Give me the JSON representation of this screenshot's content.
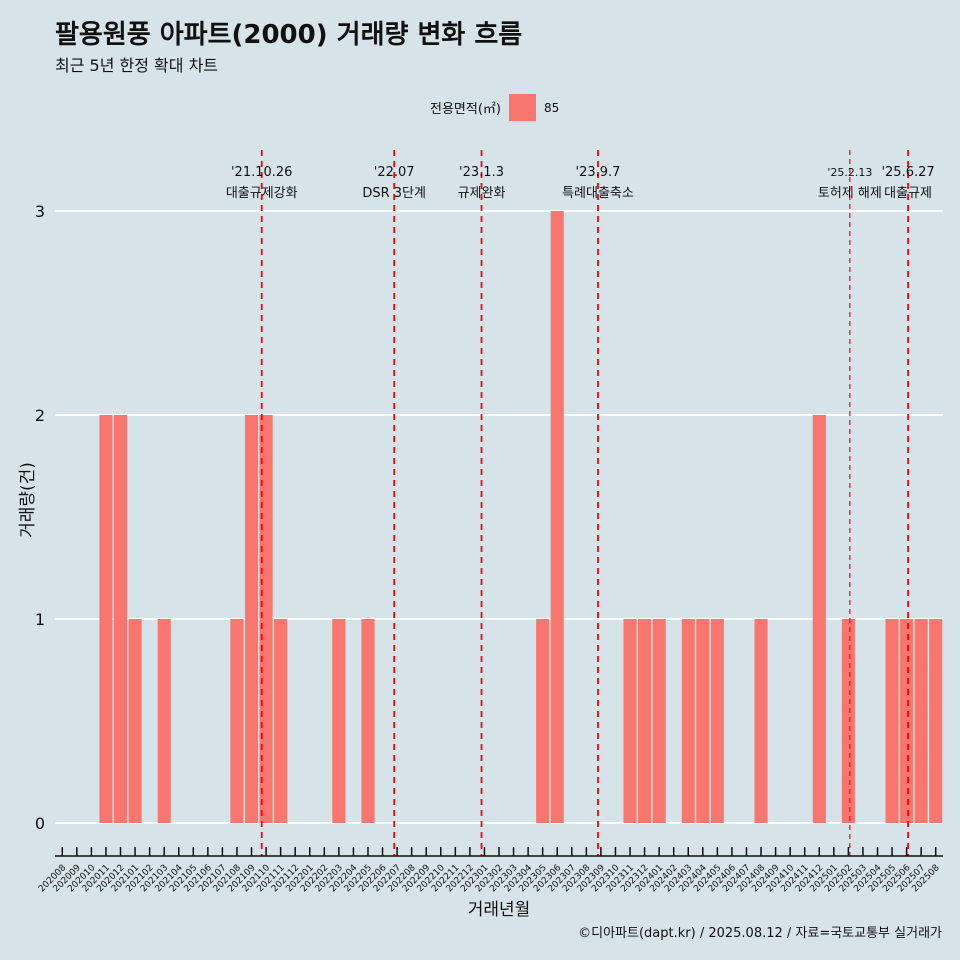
{
  "title": "팔용원풍 아파트(2000) 거래량 변화 흐름",
  "subtitle": "최근 5년 한정 확대 차트",
  "legend": {
    "title": "전용면적(㎡)",
    "entry": "85"
  },
  "caption": "©디아파트(dapt.kr) / 2025.08.12 / 자료=국토교통부 실거래가",
  "colors": {
    "background": "#d6e4ea",
    "bar": "#f8766d",
    "event_line": "#ff0000",
    "grid": "#ffffff"
  },
  "chart_data": {
    "type": "bar",
    "xlabel": "거래년월",
    "ylabel": "거래량(건)",
    "ylim": [
      0,
      3
    ],
    "yticks": [
      0,
      1,
      2,
      3
    ],
    "grid": "horizontal major lines",
    "legend_position": "top",
    "categories": [
      "202008",
      "202009",
      "202010",
      "202011",
      "202012",
      "202101",
      "202102",
      "202103",
      "202104",
      "202105",
      "202106",
      "202107",
      "202108",
      "202109",
      "202110",
      "202111",
      "202112",
      "202201",
      "202202",
      "202203",
      "202204",
      "202205",
      "202206",
      "202207",
      "202208",
      "202209",
      "202210",
      "202211",
      "202212",
      "202301",
      "202302",
      "202303",
      "202304",
      "202305",
      "202306",
      "202307",
      "202308",
      "202309",
      "202310",
      "202311",
      "202312",
      "202401",
      "202402",
      "202403",
      "202404",
      "202405",
      "202406",
      "202407",
      "202408",
      "202409",
      "202410",
      "202411",
      "202412",
      "202501",
      "202502",
      "202503",
      "202504",
      "202505",
      "202506",
      "202507",
      "202508"
    ],
    "series": [
      {
        "name": "85",
        "values": [
          0,
          0,
          0,
          2,
          2,
          1,
          0,
          1,
          0,
          0,
          0,
          0,
          1,
          2,
          2,
          1,
          0,
          0,
          0,
          1,
          0,
          1,
          0,
          0,
          0,
          0,
          0,
          0,
          0,
          0,
          0,
          0,
          0,
          1,
          3,
          0,
          0,
          0,
          0,
          1,
          1,
          1,
          0,
          1,
          1,
          1,
          0,
          0,
          1,
          0,
          0,
          0,
          2,
          0,
          1,
          0,
          0,
          1,
          1,
          1,
          1
        ]
      }
    ],
    "events": [
      {
        "date": "'21.10.26",
        "label": "대출규제강화",
        "position": 14.2
      },
      {
        "date": "'22.07",
        "label": "DSR 3단계",
        "position": 23.3
      },
      {
        "date": "'23.1.3",
        "label": "규제완화",
        "position": 29.3
      },
      {
        "date": "'23.9.7",
        "label": "특례대출축소",
        "position": 37.3
      },
      {
        "date": "'25.2.13",
        "label": "토허제 해제",
        "position": 54.6
      },
      {
        "date": "'25.6.27",
        "label": "대출규제",
        "position": 58.6
      }
    ]
  }
}
